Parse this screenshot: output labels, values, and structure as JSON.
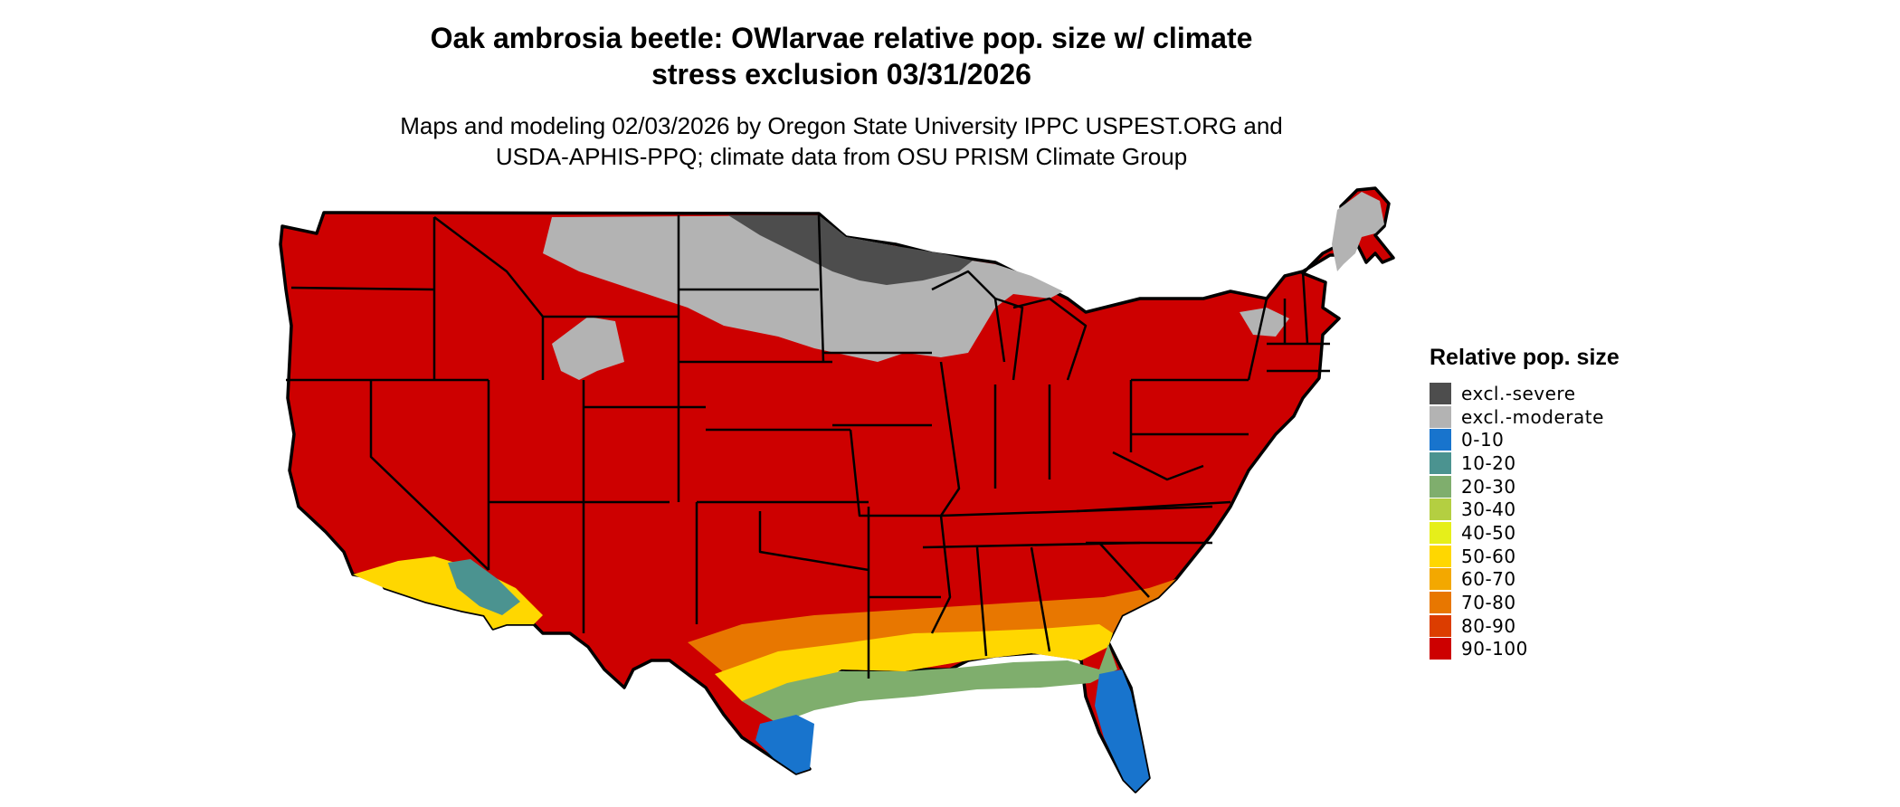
{
  "title": {
    "line1": "Oak ambrosia beetle: OWlarvae relative pop. size w/ climate",
    "line2": "stress exclusion 03/31/2026"
  },
  "subtitle": {
    "line1": "Maps and modeling 02/03/2026 by Oregon State University IPPC USPEST.ORG and",
    "line2": "USDA-APHIS-PPQ; climate data from OSU PRISM Climate Group"
  },
  "legend": {
    "title": "Relative pop. size",
    "items": [
      {
        "label": "excl.-severe",
        "color": "#4d4d4d"
      },
      {
        "label": "excl.-moderate",
        "color": "#b3b3b3"
      },
      {
        "label": "0-10",
        "color": "#1874cd"
      },
      {
        "label": "10-20",
        "color": "#4b9390"
      },
      {
        "label": "20-30",
        "color": "#7fae6d"
      },
      {
        "label": "30-40",
        "color": "#b4cf41"
      },
      {
        "label": "40-50",
        "color": "#e6ef1a"
      },
      {
        "label": "50-60",
        "color": "#ffd700"
      },
      {
        "label": "60-70",
        "color": "#f3a800"
      },
      {
        "label": "70-80",
        "color": "#e87700"
      },
      {
        "label": "80-90",
        "color": "#dc3d00"
      },
      {
        "label": "90-100",
        "color": "#cd0000"
      }
    ]
  },
  "map": {
    "background_class": "90-100",
    "states": [
      "WA",
      "OR",
      "CA",
      "ID",
      "NV",
      "MT",
      "WY",
      "UT",
      "AZ",
      "CO",
      "NM",
      "ND",
      "SD",
      "NE",
      "KS",
      "OK",
      "TX",
      "MN",
      "IA",
      "MO",
      "AR",
      "LA",
      "WI",
      "IL",
      "MI",
      "IN",
      "OH",
      "KY",
      "TN",
      "MS",
      "AL",
      "GA",
      "FL",
      "SC",
      "NC",
      "VA",
      "WV",
      "MD",
      "DE",
      "PA",
      "NJ",
      "NY",
      "CT",
      "RI",
      "MA",
      "VT",
      "NH",
      "ME"
    ]
  }
}
